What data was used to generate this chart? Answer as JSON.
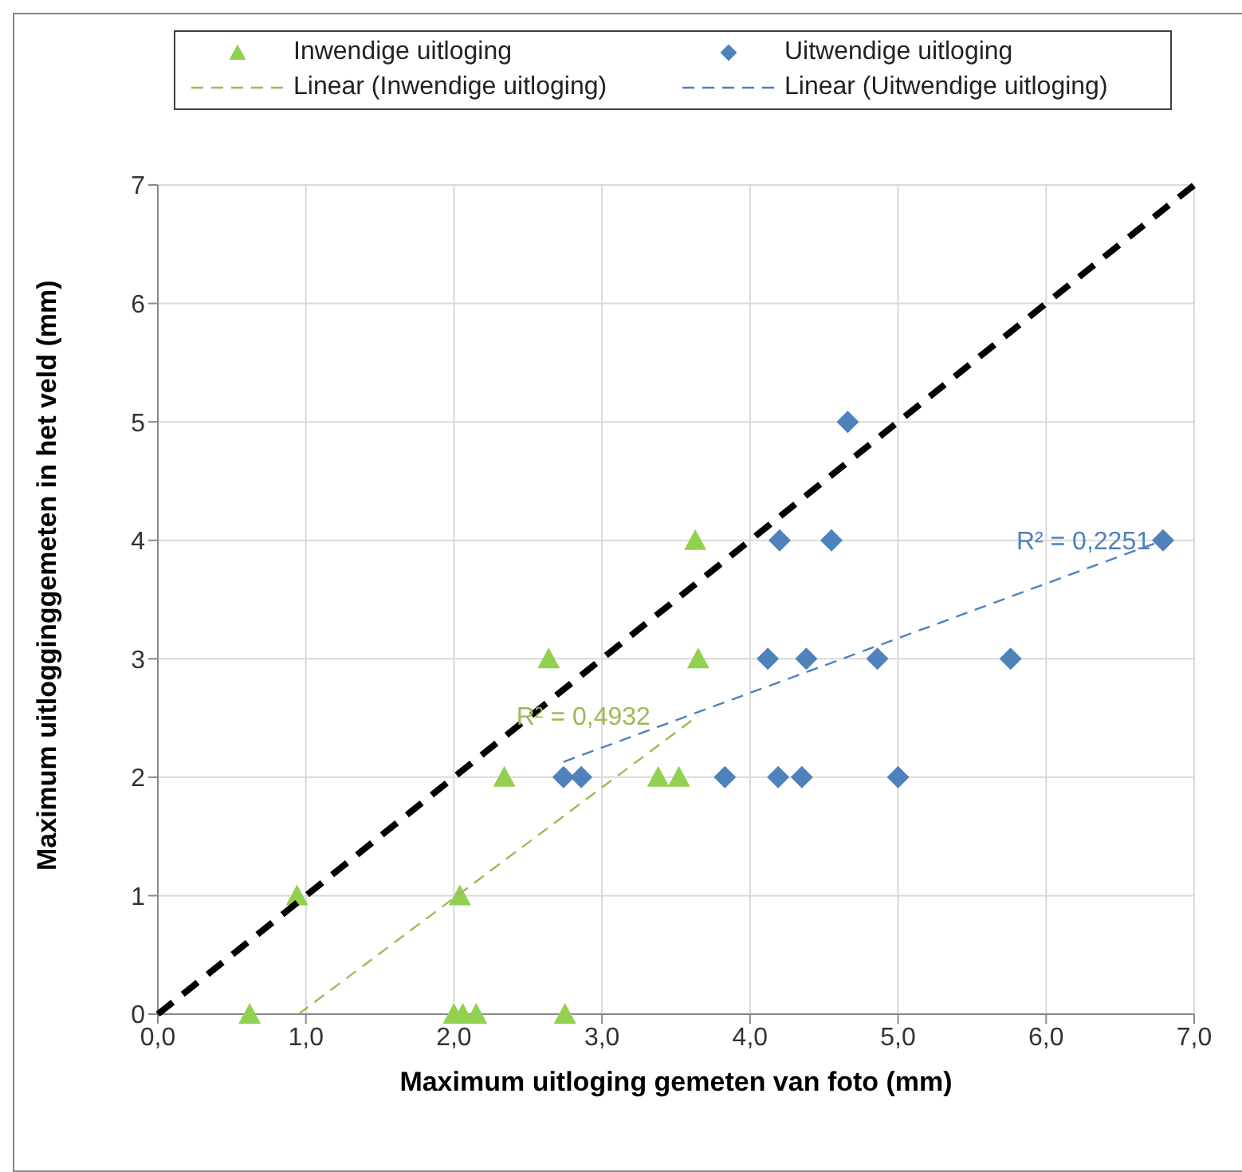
{
  "chart_data": {
    "type": "scatter",
    "xlabel": "Maximum uitloging gemeten van foto (mm)",
    "ylabel": "Maximum uitlogginggemeten in het veld (mm)",
    "xlim": [
      0,
      7
    ],
    "ylim": [
      0,
      7
    ],
    "xticks": [
      {
        "value": 0,
        "label": "0,0"
      },
      {
        "value": 1,
        "label": "1,0"
      },
      {
        "value": 2,
        "label": "2,0"
      },
      {
        "value": 3,
        "label": "3,0"
      },
      {
        "value": 4,
        "label": "4,0"
      },
      {
        "value": 5,
        "label": "5,0"
      },
      {
        "value": 6,
        "label": "6,0"
      },
      {
        "value": 7,
        "label": "7,0"
      }
    ],
    "yticks": [
      0,
      1,
      2,
      3,
      4,
      5,
      6,
      7
    ],
    "grid": true,
    "legend": "top",
    "series": [
      {
        "name": "Inwendige uitloging",
        "marker": "triangle",
        "color": "#92d050",
        "x": [
          0.62,
          0.94,
          2.0,
          2.06,
          2.15,
          2.04,
          2.75,
          2.34,
          2.64,
          3.38,
          3.52,
          3.65,
          3.63
        ],
        "values": [
          0,
          1,
          0,
          0,
          0,
          1,
          0,
          2,
          3,
          2,
          2,
          3,
          4
        ]
      },
      {
        "name": "Uitwendige uitloging",
        "marker": "diamond",
        "color": "#4f81bd",
        "x": [
          2.74,
          2.86,
          3.83,
          4.19,
          4.35,
          5.0,
          4.12,
          4.38,
          4.86,
          5.76,
          4.2,
          4.55,
          6.79,
          4.66
        ],
        "values": [
          2,
          2,
          2,
          2,
          2,
          2,
          3,
          3,
          3,
          3,
          4,
          4,
          4,
          5
        ]
      },
      {
        "name": "Linear (Inwendige uitloging)",
        "type": "line",
        "marker": "none",
        "line_style": "dashed",
        "color": "#9bbb59",
        "x": [
          0.95,
          3.65
        ],
        "values": [
          0,
          2.52
        ]
      },
      {
        "name": "Linear (Uitwendige uitloging)",
        "type": "line",
        "marker": "none",
        "line_style": "dashed",
        "color": "#4f81bd",
        "x": [
          2.74,
          6.79
        ],
        "values": [
          2.13,
          4.0
        ]
      },
      {
        "type": "line",
        "marker": "none",
        "line_style": "dashed",
        "color": "#000000",
        "x": [
          0,
          7
        ],
        "values": [
          0,
          7
        ]
      }
    ],
    "annotations": [
      "R² = 0,4932",
      "R² = 0,2251"
    ]
  }
}
